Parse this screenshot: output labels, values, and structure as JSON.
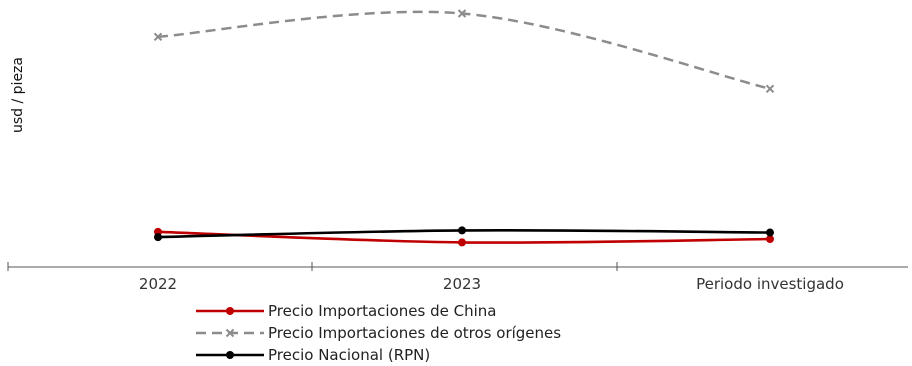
{
  "chart_data": {
    "type": "line",
    "title": "",
    "xlabel": "",
    "ylabel": "usd / pieza",
    "categories": [
      "2022",
      "2023",
      "Periodo investigado"
    ],
    "y_ticks_shown": false,
    "grid": false,
    "legend_position": "bottom-left",
    "series": [
      {
        "name": "Precio Importaciones de China",
        "values": [
          1.62,
          0.62,
          0.94
        ],
        "color": "#c00000",
        "dash": "solid",
        "marker": "circle"
      },
      {
        "name": "Precio Importaciones de otros orígenes",
        "values": [
          20.0,
          22.2,
          15.1
        ],
        "color": "#8c8c8c",
        "dash": "dashed",
        "marker": "x"
      },
      {
        "name": "Precio Nacional (RPN)",
        "values": [
          1.12,
          1.75,
          1.55
        ],
        "color": "#000000",
        "dash": "solid",
        "marker": "circle"
      }
    ]
  }
}
